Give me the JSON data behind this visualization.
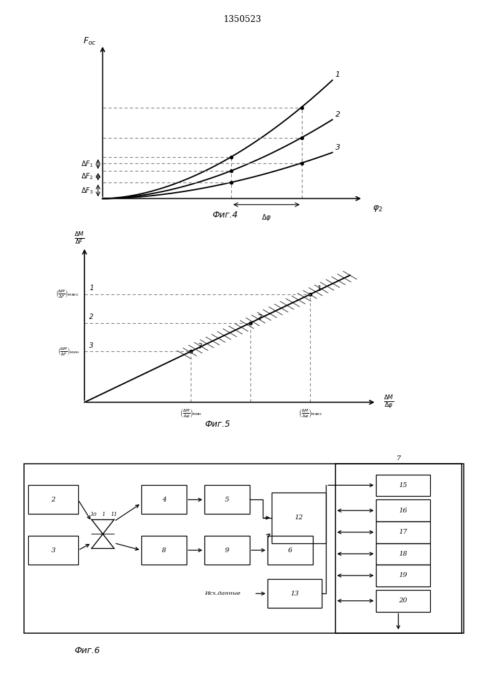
{
  "title_text": "1350523",
  "fig4_label": "Фиг.4",
  "fig5_label": "Фиг.5",
  "fig6_label": "Фиг.6",
  "bg_color": "#ffffff"
}
